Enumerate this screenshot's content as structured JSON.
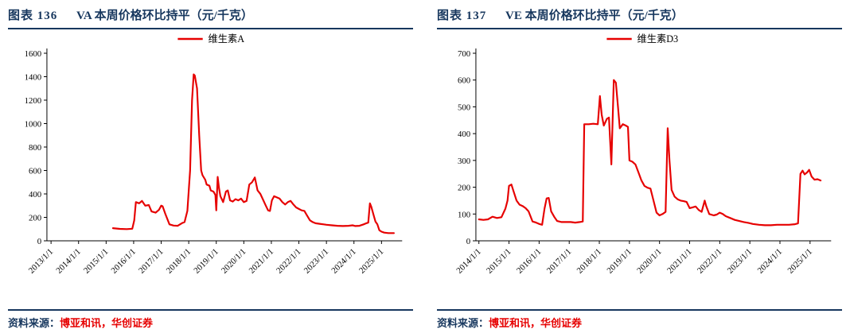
{
  "colors": {
    "accent_navy": "#17375E",
    "line_red": "#E60000"
  },
  "charts": [
    {
      "figure_label": "图表  136",
      "title": "VA 本周价格环比持平（元/千克）",
      "legend": "维生素A",
      "source_label": "资料来源：",
      "source_names": "博亚和讯，华创证券",
      "chart_data": {
        "type": "line",
        "title": "VA 本周价格环比持平（元/千克）",
        "ylabel": "",
        "xlabel": "",
        "ylim": [
          0,
          1600
        ],
        "ytick_step": 200,
        "xlim": [
          2012.85,
          2025.75
        ],
        "xticks": [
          2013,
          2014,
          2015,
          2016,
          2017,
          2018,
          2019,
          2020,
          2021,
          2022,
          2023,
          2024,
          2025
        ],
        "xtick_labels": [
          "2013/1/1",
          "2014/1/1",
          "2015/1/1",
          "2016/1/1",
          "2017/1/1",
          "2018/1/1",
          "2019/1/1",
          "2020/1/1",
          "2021/1/1",
          "2022/1/1",
          "2023/1/1",
          "2024/1/1",
          "2025/1/1"
        ],
        "grid": false,
        "legend_position": "top-center",
        "line_color": "#E60000",
        "series": [
          {
            "name": "维生素A",
            "points": [
              [
                2015.25,
                108
              ],
              [
                2015.5,
                102
              ],
              [
                2015.75,
                100
              ],
              [
                2015.95,
                103
              ],
              [
                2016.02,
                175
              ],
              [
                2016.08,
                330
              ],
              [
                2016.2,
                320
              ],
              [
                2016.3,
                340
              ],
              [
                2016.42,
                300
              ],
              [
                2016.55,
                305
              ],
              [
                2016.65,
                250
              ],
              [
                2016.8,
                240
              ],
              [
                2016.92,
                265
              ],
              [
                2017.0,
                300
              ],
              [
                2017.05,
                295
              ],
              [
                2017.15,
                230
              ],
              [
                2017.3,
                140
              ],
              [
                2017.45,
                130
              ],
              [
                2017.6,
                128
              ],
              [
                2017.75,
                150
              ],
              [
                2017.85,
                160
              ],
              [
                2017.95,
                255
              ],
              [
                2018.05,
                600
              ],
              [
                2018.12,
                1200
              ],
              [
                2018.18,
                1420
              ],
              [
                2018.22,
                1410
              ],
              [
                2018.3,
                1300
              ],
              [
                2018.38,
                900
              ],
              [
                2018.45,
                600
              ],
              [
                2018.5,
                560
              ],
              [
                2018.6,
                520
              ],
              [
                2018.65,
                480
              ],
              [
                2018.75,
                470
              ],
              [
                2018.8,
                430
              ],
              [
                2018.9,
                420
              ],
              [
                2018.97,
                390
              ],
              [
                2019.0,
                260
              ],
              [
                2019.05,
                545
              ],
              [
                2019.1,
                450
              ],
              [
                2019.15,
                380
              ],
              [
                2019.25,
                330
              ],
              [
                2019.35,
                420
              ],
              [
                2019.42,
                430
              ],
              [
                2019.5,
                345
              ],
              [
                2019.6,
                335
              ],
              [
                2019.7,
                355
              ],
              [
                2019.8,
                345
              ],
              [
                2019.9,
                360
              ],
              [
                2020.0,
                330
              ],
              [
                2020.1,
                340
              ],
              [
                2020.2,
                480
              ],
              [
                2020.3,
                500
              ],
              [
                2020.4,
                540
              ],
              [
                2020.5,
                430
              ],
              [
                2020.6,
                400
              ],
              [
                2020.7,
                350
              ],
              [
                2020.8,
                300
              ],
              [
                2020.88,
                260
              ],
              [
                2020.95,
                255
              ],
              [
                2021.02,
                345
              ],
              [
                2021.1,
                380
              ],
              [
                2021.2,
                370
              ],
              [
                2021.3,
                360
              ],
              [
                2021.4,
                330
              ],
              [
                2021.5,
                310
              ],
              [
                2021.6,
                330
              ],
              [
                2021.7,
                340
              ],
              [
                2021.8,
                310
              ],
              [
                2021.9,
                285
              ],
              [
                2022.0,
                272
              ],
              [
                2022.1,
                260
              ],
              [
                2022.2,
                255
              ],
              [
                2022.3,
                215
              ],
              [
                2022.4,
                175
              ],
              [
                2022.5,
                160
              ],
              [
                2022.6,
                150
              ],
              [
                2022.75,
                145
              ],
              [
                2022.9,
                140
              ],
              [
                2023.0,
                137
              ],
              [
                2023.2,
                132
              ],
              [
                2023.4,
                128
              ],
              [
                2023.6,
                126
              ],
              [
                2023.8,
                128
              ],
              [
                2023.95,
                132
              ],
              [
                2024.05,
                126
              ],
              [
                2024.2,
                128
              ],
              [
                2024.35,
                140
              ],
              [
                2024.45,
                150
              ],
              [
                2024.52,
                155
              ],
              [
                2024.58,
                320
              ],
              [
                2024.63,
                290
              ],
              [
                2024.7,
                230
              ],
              [
                2024.78,
                165
              ],
              [
                2024.85,
                140
              ],
              [
                2024.92,
                90
              ],
              [
                2025.0,
                78
              ],
              [
                2025.1,
                70
              ],
              [
                2025.25,
                66
              ],
              [
                2025.45,
                66
              ]
            ]
          }
        ]
      }
    },
    {
      "figure_label": "图表  137",
      "title": "VE 本周价格环比持平（元/千克）",
      "legend": "维生素D3",
      "source_label": "资料来源：",
      "source_names": "博亚和讯，华创证券",
      "chart_data": {
        "type": "line",
        "title": "VE 本周价格环比持平（元/千克）",
        "ylabel": "",
        "xlabel": "",
        "ylim": [
          0,
          700
        ],
        "ytick_step": 100,
        "xlim": [
          2013.9,
          2025.7
        ],
        "xticks": [
          2014,
          2015,
          2016,
          2017,
          2018,
          2019,
          2020,
          2021,
          2022,
          2023,
          2024,
          2025
        ],
        "xtick_labels": [
          "2014/1/1",
          "2015/1/1",
          "2016/1/1",
          "2017/1/1",
          "2018/1/1",
          "2019/1/1",
          "2020/1/1",
          "2021/1/1",
          "2022/1/1",
          "2023/1/1",
          "2024/1/1",
          "2025/1/1"
        ],
        "grid": false,
        "legend_position": "top-center",
        "line_color": "#E60000",
        "series": [
          {
            "name": "维生素D3",
            "points": [
              [
                2014.0,
                80
              ],
              [
                2014.15,
                78
              ],
              [
                2014.3,
                80
              ],
              [
                2014.45,
                90
              ],
              [
                2014.6,
                85
              ],
              [
                2014.75,
                88
              ],
              [
                2014.88,
                120
              ],
              [
                2014.95,
                150
              ],
              [
                2015.0,
                205
              ],
              [
                2015.08,
                210
              ],
              [
                2015.15,
                185
              ],
              [
                2015.25,
                150
              ],
              [
                2015.35,
                135
              ],
              [
                2015.45,
                130
              ],
              [
                2015.55,
                122
              ],
              [
                2015.65,
                110
              ],
              [
                2015.78,
                72
              ],
              [
                2015.9,
                68
              ],
              [
                2016.0,
                63
              ],
              [
                2016.1,
                60
              ],
              [
                2016.18,
                120
              ],
              [
                2016.25,
                158
              ],
              [
                2016.32,
                160
              ],
              [
                2016.4,
                110
              ],
              [
                2016.5,
                90
              ],
              [
                2016.6,
                74
              ],
              [
                2016.75,
                70
              ],
              [
                2016.9,
                70
              ],
              [
                2017.05,
                70
              ],
              [
                2017.2,
                68
              ],
              [
                2017.35,
                70
              ],
              [
                2017.45,
                72
              ],
              [
                2017.5,
                435
              ],
              [
                2017.65,
                435
              ],
              [
                2017.8,
                437
              ],
              [
                2017.95,
                435
              ],
              [
                2018.02,
                540
              ],
              [
                2018.08,
                470
              ],
              [
                2018.15,
                430
              ],
              [
                2018.25,
                455
              ],
              [
                2018.32,
                460
              ],
              [
                2018.4,
                285
              ],
              [
                2018.48,
                600
              ],
              [
                2018.55,
                590
              ],
              [
                2018.62,
                500
              ],
              [
                2018.68,
                420
              ],
              [
                2018.78,
                435
              ],
              [
                2018.88,
                430
              ],
              [
                2018.95,
                425
              ],
              [
                2019.0,
                300
              ],
              [
                2019.1,
                295
              ],
              [
                2019.2,
                285
              ],
              [
                2019.3,
                255
              ],
              [
                2019.4,
                225
              ],
              [
                2019.5,
                205
              ],
              [
                2019.6,
                198
              ],
              [
                2019.7,
                195
              ],
              [
                2019.8,
                150
              ],
              [
                2019.9,
                105
              ],
              [
                2020.0,
                95
              ],
              [
                2020.1,
                100
              ],
              [
                2020.2,
                108
              ],
              [
                2020.27,
                420
              ],
              [
                2020.33,
                300
              ],
              [
                2020.4,
                190
              ],
              [
                2020.5,
                165
              ],
              [
                2020.6,
                155
              ],
              [
                2020.7,
                150
              ],
              [
                2020.8,
                148
              ],
              [
                2020.9,
                145
              ],
              [
                2021.0,
                122
              ],
              [
                2021.1,
                125
              ],
              [
                2021.2,
                128
              ],
              [
                2021.3,
                115
              ],
              [
                2021.4,
                108
              ],
              [
                2021.5,
                150
              ],
              [
                2021.55,
                130
              ],
              [
                2021.65,
                100
              ],
              [
                2021.8,
                95
              ],
              [
                2021.9,
                98
              ],
              [
                2022.0,
                105
              ],
              [
                2022.1,
                100
              ],
              [
                2022.2,
                92
              ],
              [
                2022.35,
                85
              ],
              [
                2022.5,
                78
              ],
              [
                2022.65,
                74
              ],
              [
                2022.8,
                70
              ],
              [
                2022.95,
                67
              ],
              [
                2023.1,
                63
              ],
              [
                2023.3,
                60
              ],
              [
                2023.5,
                58
              ],
              [
                2023.7,
                58
              ],
              [
                2023.9,
                60
              ],
              [
                2024.1,
                60
              ],
              [
                2024.3,
                60
              ],
              [
                2024.5,
                62
              ],
              [
                2024.6,
                65
              ],
              [
                2024.68,
                250
              ],
              [
                2024.75,
                262
              ],
              [
                2024.82,
                248
              ],
              [
                2024.9,
                255
              ],
              [
                2024.97,
                265
              ],
              [
                2025.05,
                240
              ],
              [
                2025.15,
                228
              ],
              [
                2025.25,
                230
              ],
              [
                2025.35,
                225
              ]
            ]
          }
        ]
      }
    }
  ]
}
